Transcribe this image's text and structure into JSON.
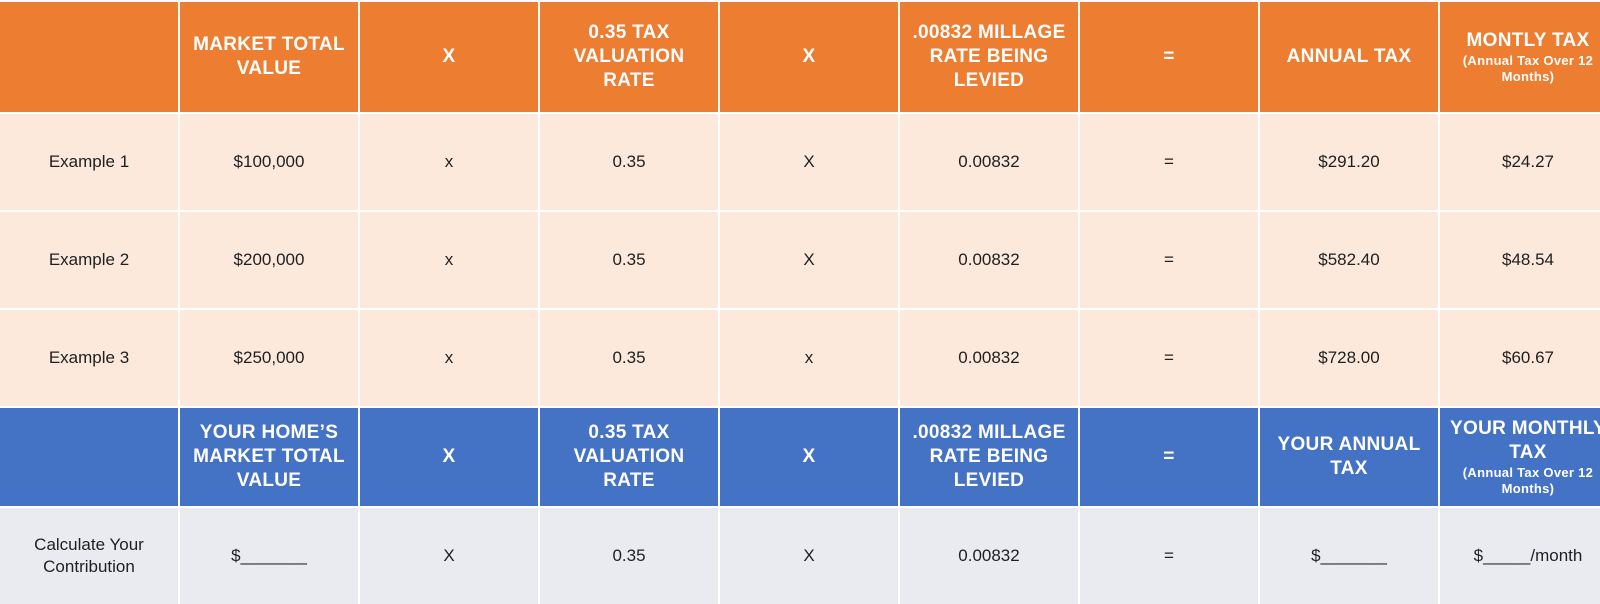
{
  "header": {
    "cells": [
      "",
      "MARKET TOTAL VALUE",
      "X",
      "0.35 TAX VALUATION RATE",
      "X",
      ".00832 MILLAGE RATE BEING LEVIED",
      "=",
      "ANNUAL TAX"
    ],
    "last_title": "MONTLY TAX",
    "last_sub": "(Annual Tax Over 12 Months)"
  },
  "examples": [
    {
      "label": "Example 1",
      "value": "$100,000",
      "op1": "x",
      "rate": "0.35",
      "op2": "X",
      "millage": "0.00832",
      "eq": "=",
      "annual": "$291.20",
      "monthly": "$24.27"
    },
    {
      "label": "Example 2",
      "value": "$200,000",
      "op1": "x",
      "rate": "0.35",
      "op2": "X",
      "millage": "0.00832",
      "eq": "=",
      "annual": "$582.40",
      "monthly": "$48.54"
    },
    {
      "label": "Example 3",
      "value": "$250,000",
      "op1": "x",
      "rate": "0.35",
      "op2": "x",
      "millage": "0.00832",
      "eq": "=",
      "annual": "$728.00",
      "monthly": "$60.67"
    }
  ],
  "your_header": {
    "cells": [
      "",
      "YOUR HOME’S MARKET TOTAL VALUE",
      "X",
      "0.35 TAX VALUATION RATE",
      "X",
      ".00832 MILLAGE RATE BEING LEVIED",
      "=",
      "YOUR ANNUAL TAX"
    ],
    "last_title": "YOUR MONTHLY TAX",
    "last_sub": "(Annual Tax Over 12 Months)"
  },
  "calculate": {
    "label": "Calculate Your Contribution",
    "value": "$_______",
    "op1": "X",
    "rate": "0.35",
    "op2": "X",
    "millage": "0.00832",
    "eq": "=",
    "annual": "$_______",
    "monthly": "$_____/month"
  }
}
